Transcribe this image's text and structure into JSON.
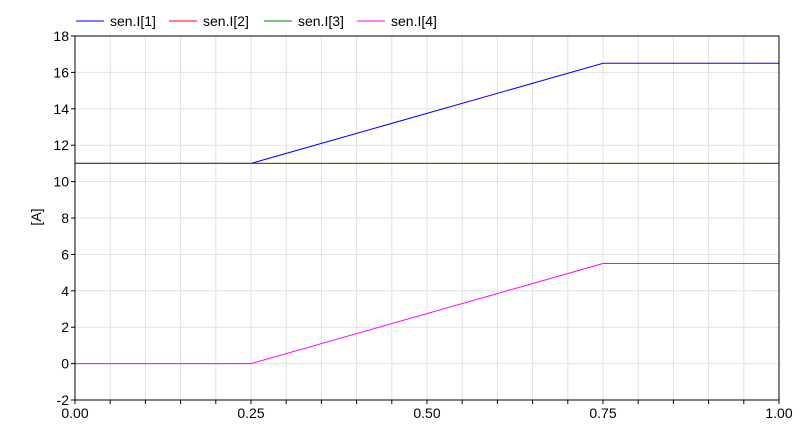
{
  "chart_data": {
    "type": "line",
    "title": "",
    "xlabel": "",
    "ylabel": "[A]",
    "xlim": [
      0.0,
      1.0
    ],
    "ylim": [
      -2,
      18
    ],
    "x_ticks": [
      0.0,
      0.25,
      0.5,
      0.75,
      1.0
    ],
    "x_tick_labels": [
      "0.00",
      "0.25",
      "0.50",
      "0.75",
      "1.00"
    ],
    "y_ticks": [
      -2,
      0,
      2,
      4,
      6,
      8,
      10,
      12,
      14,
      16,
      18
    ],
    "y_tick_labels": [
      "-2",
      "0",
      "2",
      "4",
      "6",
      "8",
      "10",
      "12",
      "14",
      "16",
      "18"
    ],
    "grid": true,
    "legend_position": "top-left",
    "series": [
      {
        "name": "sen.I[1]",
        "color": "#0000ff",
        "x": [
          0.0,
          0.25,
          0.75,
          1.0
        ],
        "y": [
          11.0,
          11.0,
          16.5,
          16.5
        ]
      },
      {
        "name": "sen.I[2]",
        "color": "#ff0000",
        "x": [
          0.0,
          1.0
        ],
        "y": [
          11.0,
          11.0
        ]
      },
      {
        "name": "sen.I[3]",
        "color": "#008000",
        "x": [
          0.0,
          1.0
        ],
        "y": [
          11.0,
          11.0
        ]
      },
      {
        "name": "sen.I[4]",
        "color": "#ff00ff",
        "x": [
          0.0,
          0.25,
          0.75,
          1.0
        ],
        "y": [
          0.0,
          0.0,
          5.5,
          5.5
        ]
      }
    ]
  }
}
